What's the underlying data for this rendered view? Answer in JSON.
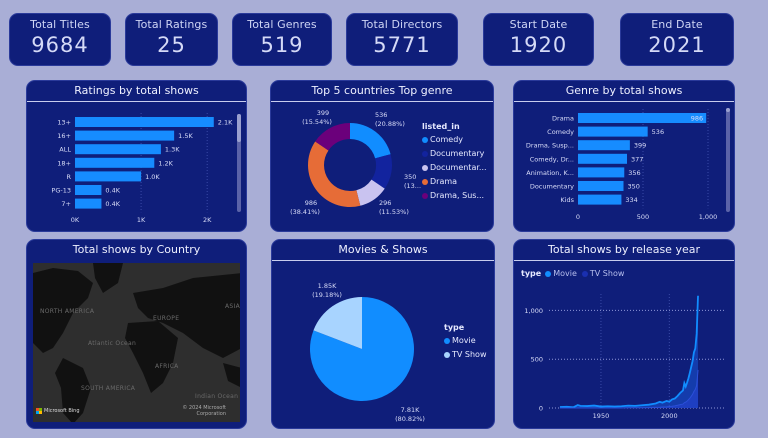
{
  "kpis": [
    {
      "label": "Total Titles",
      "value": "9684"
    },
    {
      "label": "Total Ratings",
      "value": "25"
    },
    {
      "label": "Total Genres",
      "value": "519"
    },
    {
      "label": "Total Directors",
      "value": "5771"
    },
    {
      "label": "Start Date",
      "value": "1920"
    },
    {
      "label": "End Date",
      "value": "2021"
    }
  ],
  "colors": {
    "background": "#a9aed6",
    "card": "#0f1e7a",
    "bar": "#168cff",
    "comedy": "#118dff",
    "documentary": "#12239e",
    "documentary2": "#c9c3f0",
    "drama": "#e66c37",
    "drama_suspense": "#6b007b",
    "movie": "#118dff",
    "tv_show": "#a8d4ff"
  },
  "map": {
    "title": "Total shows by Country",
    "labels": {
      "north_america": "NORTH AMERICA",
      "europe": "EUROPE",
      "asia": "ASIA",
      "atlantic": "Atlantic Ocean",
      "africa": "AFRICA",
      "south_america": "SOUTH AMERICA",
      "indian": "Indian Ocean"
    },
    "brand": "Microsoft Bing",
    "copyright_line1": "© 2024 Microsoft",
    "copyright_line2": "Corporation"
  },
  "chart_data": [
    {
      "id": "ratings",
      "type": "bar",
      "orientation": "horizontal",
      "title": "Ratings by total shows",
      "categories": [
        "13+",
        "16+",
        "ALL",
        "18+",
        "R",
        "PG-13",
        "7+"
      ],
      "values": [
        2100,
        1500,
        1300,
        1200,
        1000,
        400,
        400
      ],
      "data_labels": [
        "2.1K",
        "1.5K",
        "1.3K",
        "1.2K",
        "1.0K",
        "0.4K",
        "0.4K"
      ],
      "xlim": [
        0,
        2300
      ],
      "xticks": [
        0,
        1000,
        2000
      ],
      "xtick_labels": [
        "0K",
        "1K",
        "2K"
      ],
      "grid": true
    },
    {
      "id": "top_countries_genre",
      "type": "pie",
      "donut": true,
      "title": "Top 5 countries Top genre",
      "legend_title": "listed_in",
      "legend_position": "right",
      "slices": [
        {
          "label": "Comedy",
          "value": 536,
          "data_label": "536",
          "pct_label": "(20.88%)",
          "color_key": "comedy"
        },
        {
          "label": "Documentary",
          "value": 350,
          "data_label": "350",
          "pct_label": "(13....)",
          "color_key": "documentary"
        },
        {
          "label": "Documentar...",
          "value": 296,
          "data_label": "296",
          "pct_label": "(11.53%)",
          "color_key": "documentary2"
        },
        {
          "label": "Drama",
          "value": 986,
          "data_label": "986",
          "pct_label": "(38.41%)",
          "color_key": "drama"
        },
        {
          "label": "Drama, Sus...",
          "value": 399,
          "data_label": "399",
          "pct_label": "(15.54%)",
          "color_key": "drama_suspense"
        }
      ]
    },
    {
      "id": "genre",
      "type": "bar",
      "orientation": "horizontal",
      "title": "Genre by total shows",
      "categories": [
        "Drama",
        "Comedy",
        "Drama, Susp...",
        "Comedy, Dr...",
        "Animation, K...",
        "Documentary",
        "Kids"
      ],
      "values": [
        986,
        536,
        399,
        377,
        356,
        350,
        334
      ],
      "data_labels": [
        "986",
        "536",
        "399",
        "377",
        "356",
        "350",
        "334"
      ],
      "xlim": [
        0,
        1100
      ],
      "xticks": [
        0,
        500,
        1000
      ],
      "xtick_labels": [
        "0",
        "500",
        "1,000"
      ],
      "grid": true
    },
    {
      "id": "movies_shows",
      "type": "pie",
      "title": "Movies & Shows",
      "legend_title": "type",
      "legend_position": "right",
      "slices": [
        {
          "label": "Movie",
          "value": 7810,
          "data_label": "7.81K",
          "pct_label": "(80.82%)",
          "color_key": "movie"
        },
        {
          "label": "TV Show",
          "value": 1850,
          "data_label": "1.85K",
          "pct_label": "(19.18%)",
          "color_key": "tv_show"
        }
      ]
    },
    {
      "id": "release_year",
      "type": "area",
      "stacked": true,
      "title": "Total shows by release year",
      "legend_title": "type",
      "legend_position": "top-left",
      "xlim": [
        1912,
        2040
      ],
      "ylim": [
        0,
        1250
      ],
      "xticks": [
        1950,
        2000
      ],
      "xtick_labels": [
        "1950",
        "2000"
      ],
      "yticks": [
        0,
        500,
        1000
      ],
      "ytick_labels": [
        "0",
        "500",
        "1,000"
      ],
      "grid": true,
      "x": [
        1920,
        1925,
        1930,
        1933,
        1935,
        1940,
        1945,
        1950,
        1955,
        1960,
        1965,
        1970,
        1975,
        1980,
        1985,
        1990,
        1993,
        1995,
        1998,
        2000,
        2002,
        2004,
        2006,
        2008,
        2010,
        2011,
        2012,
        2013,
        2014,
        2015,
        2016,
        2017,
        2018,
        2019,
        2020,
        2021
      ],
      "series": [
        {
          "name": "Movie",
          "color_key": "movie",
          "values": [
            10,
            12,
            8,
            30,
            22,
            20,
            25,
            15,
            18,
            15,
            18,
            22,
            20,
            25,
            30,
            40,
            55,
            45,
            60,
            50,
            70,
            75,
            95,
            120,
            140,
            200,
            160,
            190,
            220,
            260,
            300,
            340,
            400,
            420,
            530,
            760
          ]
        },
        {
          "name": "TV Show",
          "color_key": "tv_show_dark",
          "values": [
            0,
            0,
            0,
            0,
            0,
            0,
            0,
            0,
            0,
            0,
            0,
            2,
            2,
            3,
            4,
            6,
            8,
            10,
            12,
            15,
            18,
            22,
            28,
            35,
            40,
            55,
            60,
            70,
            85,
            100,
            120,
            140,
            170,
            190,
            230,
            390
          ]
        }
      ]
    }
  ]
}
